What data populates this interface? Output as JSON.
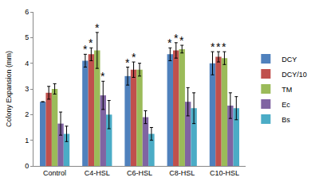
{
  "chart_data": {
    "type": "bar",
    "y_label": "Colony Expansion (mm)",
    "categories": [
      "Control",
      "C4-HSL",
      "C6-HSL",
      "C8-HSL",
      "C10-HSL"
    ],
    "series": [
      {
        "name": "DCY",
        "color": "#4f81bd",
        "values": [
          2.5,
          4.1,
          3.5,
          4.35,
          4.0
        ],
        "errors": [
          0.0,
          0.25,
          0.35,
          0.25,
          0.45
        ]
      },
      {
        "name": "DCY/10",
        "color": "#c0504d",
        "values": [
          2.85,
          4.35,
          3.75,
          4.5,
          4.25
        ],
        "errors": [
          0.25,
          0.25,
          0.3,
          0.3,
          0.2
        ]
      },
      {
        "name": "TM",
        "color": "#9bbb59",
        "values": [
          3.0,
          4.5,
          3.75,
          4.55,
          4.2
        ],
        "errors": [
          0.2,
          0.7,
          0.25,
          0.15,
          0.25
        ]
      },
      {
        "name": "Ec",
        "color": "#8064a2",
        "values": [
          1.65,
          2.75,
          1.9,
          2.5,
          2.35
        ],
        "errors": [
          0.45,
          0.55,
          0.25,
          0.55,
          0.5
        ]
      },
      {
        "name": "Bs",
        "color": "#4bacc6",
        "values": [
          1.25,
          2.0,
          1.25,
          2.25,
          2.25
        ],
        "errors": [
          0.3,
          0.55,
          0.25,
          0.6,
          0.45
        ]
      }
    ],
    "annotations": [
      {
        "text": "*",
        "category": "C4-HSL",
        "series": "DCY"
      },
      {
        "text": "*",
        "category": "C4-HSL",
        "series": "DCY/10"
      },
      {
        "text": "*",
        "category": "C4-HSL",
        "series": "TM"
      },
      {
        "text": "*",
        "category": "C4-HSL",
        "series": "Ec"
      },
      {
        "text": "*",
        "category": "C6-HSL",
        "series": "DCY"
      },
      {
        "text": "*",
        "category": "C6-HSL",
        "series": "DCY/10"
      },
      {
        "text": "*",
        "category": "C8-HSL",
        "series": "DCY"
      },
      {
        "text": "*",
        "category": "C8-HSL",
        "series": "DCY/10"
      },
      {
        "text": "*",
        "category": "C8-HSL",
        "series": "TM"
      },
      {
        "text": "*",
        "category": "C10-HSL",
        "series": "DCY"
      },
      {
        "text": "*",
        "category": "C10-HSL",
        "series": "DCY/10"
      },
      {
        "text": "*",
        "category": "C10-HSL",
        "series": "TM"
      }
    ],
    "ylim": [
      0,
      6
    ],
    "yticks": [
      0,
      1,
      2,
      3,
      4,
      5,
      6
    ],
    "grid": false,
    "legend": "right"
  }
}
